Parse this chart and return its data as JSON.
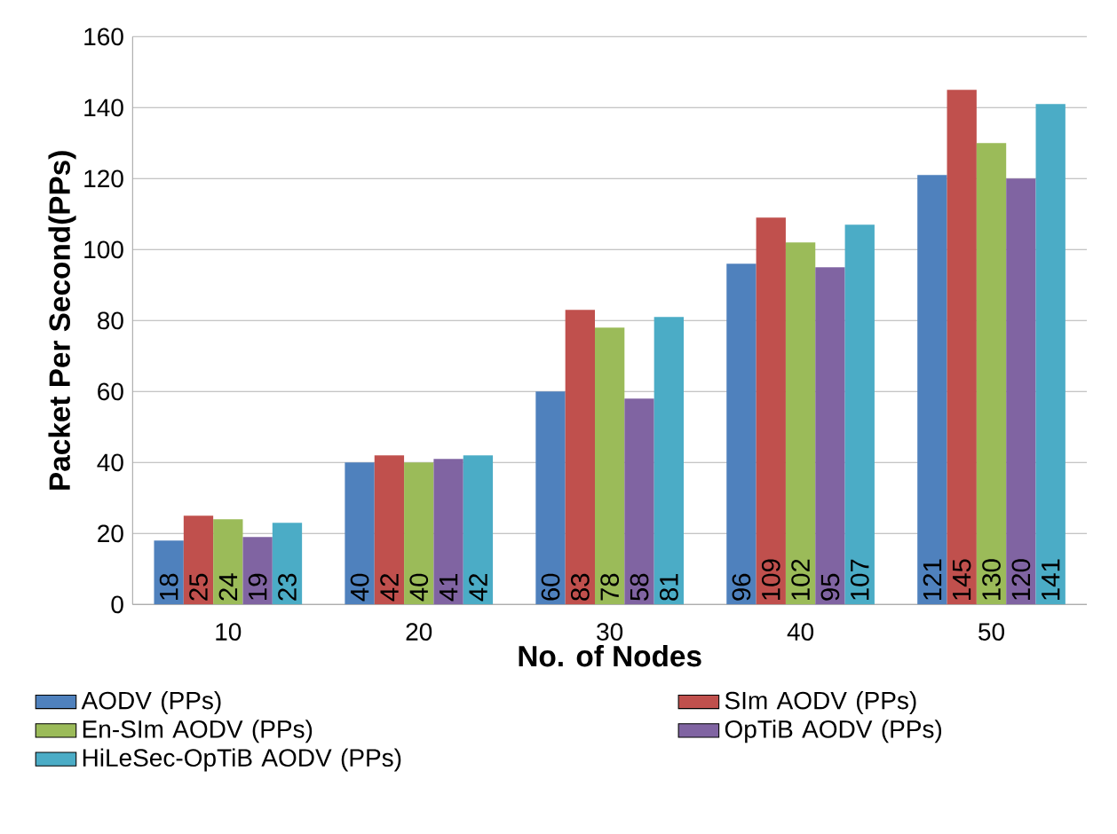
{
  "chart_data": {
    "type": "bar",
    "xlabel": "No. of Nodes",
    "ylabel": "Packet Per Second(PPs)",
    "categories": [
      "10",
      "20",
      "30",
      "40",
      "50"
    ],
    "series": [
      {
        "name": "AODV  (PPs)",
        "color": "#4f81bd",
        "values": [
          18,
          40,
          60,
          96,
          121
        ]
      },
      {
        "name": "SIm AODV (PPs)",
        "color": "#c0504d",
        "values": [
          25,
          42,
          83,
          109,
          145
        ]
      },
      {
        "name": "En-SIm AODV (PPs)",
        "color": "#9bbb59",
        "values": [
          24,
          40,
          78,
          102,
          130
        ]
      },
      {
        "name": "OpTiB AODV (PPs)",
        "color": "#8064a2",
        "values": [
          19,
          41,
          58,
          95,
          120
        ]
      },
      {
        "name": "HiLeSec-OpTiB AODV (PPs)",
        "color": "#4bacc6",
        "values": [
          23,
          42,
          81,
          107,
          141
        ]
      }
    ],
    "ylim": [
      0,
      160
    ],
    "yticks": [
      0,
      20,
      40,
      60,
      80,
      100,
      120,
      140,
      160
    ],
    "grid": "y",
    "legend": "bottom",
    "data_labels": true
  }
}
